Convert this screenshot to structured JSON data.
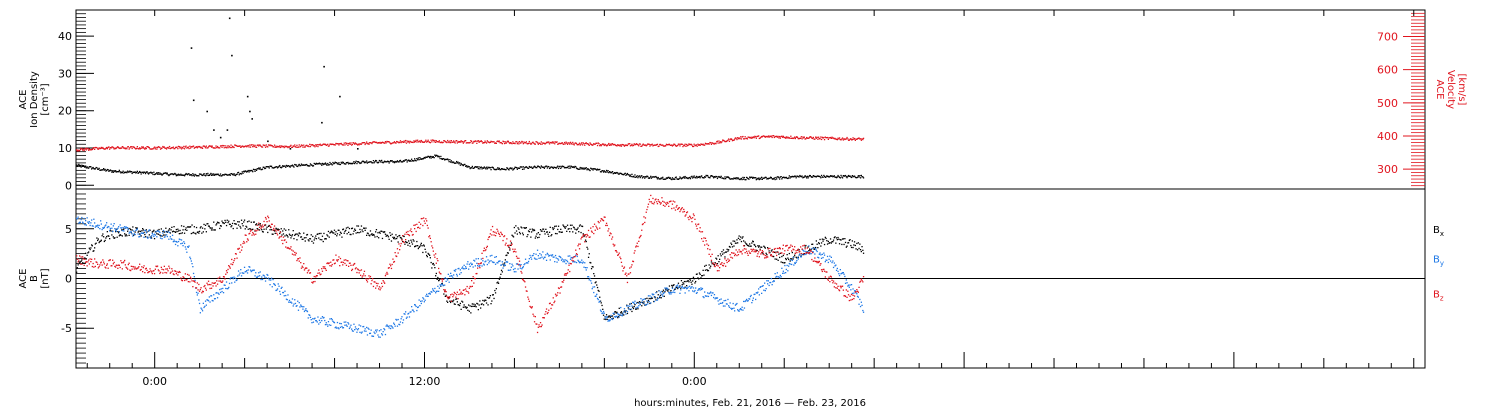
{
  "x_axis_label": "hours:minutes, Feb. 21, 2016 — Feb. 23, 2016",
  "colors": {
    "black": "#000000",
    "blue": "#1e78e6",
    "red": "#e0141e"
  },
  "chart_data": [
    {
      "type": "scatter",
      "panel": "top",
      "xlabel": "hours:minutes, Feb. 21, 2016 — Feb. 23, 2016",
      "x_units": "hours since Feb. 21, 2016 00:00 UT",
      "xlim": [
        -3.5,
        56.5
      ],
      "x_ticks": [
        0,
        12,
        24
      ],
      "x_tick_labels": [
        "0:00",
        "12:00",
        "0:00"
      ],
      "grid": false,
      "left_axis": {
        "label_lines": [
          "ACE",
          "Ion Density",
          "[cm⁻³]"
        ],
        "ylim": [
          -1,
          47
        ],
        "ticks": [
          0,
          10,
          20,
          30,
          40
        ],
        "tick_labels": [
          "0",
          "10",
          "20",
          "30",
          "40"
        ]
      },
      "right_axis": {
        "label_lines": [
          "ACE",
          "Velocity",
          "[km/s]"
        ],
        "ylim": [
          240,
          780
        ],
        "ticks": [
          300,
          400,
          500,
          600,
          700
        ],
        "tick_labels": [
          "300",
          "400",
          "500",
          "600",
          "700"
        ],
        "color": "#e0141e"
      },
      "series": [
        {
          "color": "#000000",
          "axis": "left",
          "x": [
            -3.5,
            -2,
            -0.5,
            1,
            2.5,
            3.5,
            5,
            6.5,
            8,
            9.5,
            11,
            12.5,
            14,
            15.5,
            17,
            18.5,
            20,
            21.5,
            23,
            24.5,
            26,
            27.5,
            28.5,
            30,
            31.5
          ],
          "y": [
            5.5,
            4,
            3.5,
            3,
            3,
            3,
            5,
            5.5,
            6,
            6.5,
            6.5,
            8,
            5,
            4.5,
            5,
            5,
            4,
            2.5,
            2,
            2.5,
            2,
            2,
            2.5,
            2.5,
            2.5
          ],
          "spikes_x": [
            1.6,
            1.7,
            2.3,
            2.6,
            2.9,
            3.2,
            3.3,
            3.4,
            4.1,
            4.2,
            4.3,
            5,
            6,
            7.4,
            7.5,
            8.2,
            9
          ],
          "spikes_y": [
            37,
            23,
            20,
            15,
            13,
            15,
            45,
            35,
            24,
            20,
            18,
            12,
            10,
            17,
            32,
            24,
            10
          ]
        },
        {
          "color": "#e0141e",
          "axis": "right",
          "x": [
            -3.5,
            -2,
            0,
            2,
            4,
            6,
            8,
            9.5,
            11,
            12,
            14,
            16,
            18,
            20,
            22,
            24,
            25,
            26,
            27.5,
            29,
            31.5
          ],
          "y": [
            360,
            366,
            366,
            368,
            372,
            370,
            376,
            380,
            384,
            386,
            384,
            382,
            380,
            376,
            374,
            374,
            382,
            396,
            400,
            396,
            392
          ]
        }
      ]
    },
    {
      "type": "scatter",
      "panel": "bottom",
      "xlabel": "hours:minutes, Feb. 21, 2016 — Feb. 23, 2016",
      "x_units": "hours since Feb. 21, 2016 00:00 UT",
      "xlim": [
        -3.5,
        56.5
      ],
      "x_ticks": [
        0,
        12,
        24
      ],
      "x_tick_labels": [
        "0:00",
        "12:00",
        "0:00"
      ],
      "grid": false,
      "zero_line": true,
      "legend_placement": "right",
      "left_axis": {
        "label_lines": [
          "ACE",
          "B",
          "[nT]"
        ],
        "ylim": [
          -9,
          9
        ],
        "ticks": [
          -5,
          0,
          5
        ],
        "tick_labels": [
          "-5",
          "0",
          "5"
        ]
      },
      "series": [
        {
          "name": "Bx",
          "color": "#000000",
          "x": [
            -3.5,
            -2.5,
            -2,
            -1,
            0,
            1,
            2,
            3,
            4,
            5,
            6,
            7,
            8,
            9,
            10,
            11,
            12,
            13,
            14,
            15,
            16,
            17,
            18,
            19,
            20,
            21,
            22,
            23,
            24,
            25,
            26,
            27,
            28,
            29,
            30,
            31,
            31.5
          ],
          "y": [
            1,
            4,
            4.5,
            4.8,
            4.5,
            5,
            5,
            5.5,
            5.5,
            5,
            4.5,
            4,
            4.5,
            5,
            4.5,
            4,
            3,
            -2,
            -3,
            -2,
            5,
            4.5,
            5,
            5,
            -4,
            -3,
            -2,
            -1,
            0,
            2,
            4,
            3,
            2,
            3,
            4,
            3.5,
            3
          ]
        },
        {
          "name": "By",
          "color": "#1e78e6",
          "x": [
            -3.5,
            -2.5,
            -1.5,
            -0.5,
            0.5,
            1.5,
            2,
            3,
            4,
            5,
            6,
            7,
            8,
            9,
            10,
            11,
            12,
            13,
            14,
            15,
            16,
            17,
            18,
            19,
            20,
            21,
            22,
            23,
            24,
            25,
            26,
            27,
            28,
            29,
            30,
            31,
            31.5
          ],
          "y": [
            6,
            5.5,
            5,
            4.5,
            4.5,
            3,
            -3,
            -1,
            1,
            0,
            -2,
            -4,
            -4.5,
            -5,
            -5.5,
            -4,
            -2,
            0,
            1.5,
            2,
            1,
            2.5,
            2,
            2,
            -4,
            -3,
            -2,
            -1,
            -1,
            -2,
            -3,
            -1,
            1,
            3,
            2,
            -1,
            -3
          ]
        },
        {
          "name": "Bz",
          "color": "#e0141e",
          "x": [
            -3.5,
            -2.5,
            -1.5,
            -0.5,
            0.5,
            1.5,
            2,
            3,
            4,
            5,
            6,
            7,
            8,
            9,
            10,
            11,
            12,
            13,
            14,
            15,
            16,
            17,
            18,
            19,
            20,
            21,
            22,
            23,
            24,
            25,
            26,
            27,
            28,
            29,
            30,
            31,
            31.5
          ],
          "y": [
            2,
            1.5,
            1.5,
            1,
            1,
            0,
            -1,
            0,
            4,
            6,
            3,
            0,
            2,
            1,
            -1,
            4,
            6,
            -2,
            -1,
            5,
            3,
            -5,
            -1,
            4,
            6,
            0,
            8,
            7.5,
            6,
            1,
            3,
            2.5,
            3,
            3,
            0,
            -2,
            0
          ]
        }
      ]
    }
  ]
}
